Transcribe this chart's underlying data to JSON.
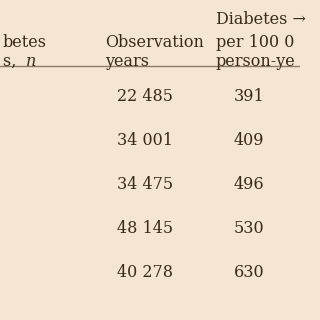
{
  "background_color": "#f5e6d3",
  "col1_header_line1": "betes",
  "col1_header_line2": "s,",
  "col1_header_line2_italic": "n",
  "col2_header_line1": "Observation",
  "col2_header_line2": "years",
  "col3_header_line0": "Diabetes →",
  "col3_header_line1": "per 100 0",
  "col3_header_line2": "person-ye",
  "observation_years": [
    "22 485",
    "34 001",
    "34 475",
    "48 145",
    "40 278"
  ],
  "diabetes_rates": [
    "391",
    "409",
    "496",
    "530",
    "630"
  ],
  "text_color": "#3a2a18",
  "line_color": "#8a7a6a",
  "font_size": 11.5,
  "header_font_size": 11.5
}
